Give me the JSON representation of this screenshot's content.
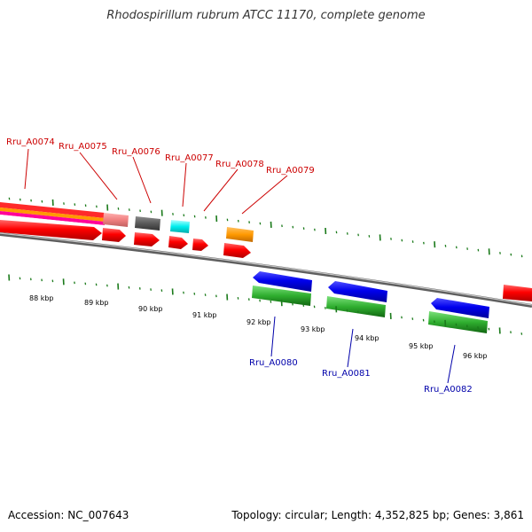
{
  "title": "Rhodospirillum rubrum ATCC 11170, complete genome",
  "footer": {
    "accession": "Accession: NC_007643",
    "summary": "Topology: circular; Length: 4,352,825 bp; Genes: 3,861"
  },
  "colors": {
    "tick": "#1a7a1a",
    "label_red": "#cc0000",
    "label_blue": "#0000aa",
    "backbone": "#888888"
  },
  "upper_labels": [
    "Rru_A0074",
    "Rru_A0075",
    "Rru_A0076",
    "Rru_A0077",
    "Rru_A0078",
    "Rru_A0079"
  ],
  "lower_labels": [
    "Rru_A0080",
    "Rru_A0081",
    "Rru_A0082"
  ],
  "kbp_labels": [
    "88 kbp",
    "89 kbp",
    "90 kbp",
    "91 kbp",
    "92 kbp",
    "93 kbp",
    "94 kbp",
    "95 kbp",
    "96 kbp"
  ]
}
